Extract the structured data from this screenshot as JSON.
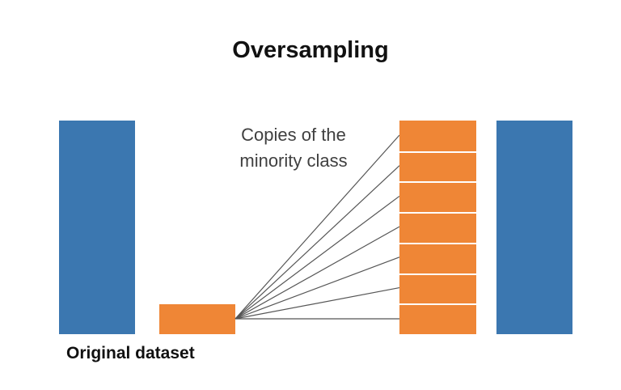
{
  "title": "Oversampling",
  "annotation": {
    "line1": "Copies of the",
    "line2": "minority class"
  },
  "caption": "Original dataset",
  "colors": {
    "majority": "#3b77b0",
    "minority": "#ef8636",
    "connector": "#555555"
  },
  "minority_copies": 7
}
